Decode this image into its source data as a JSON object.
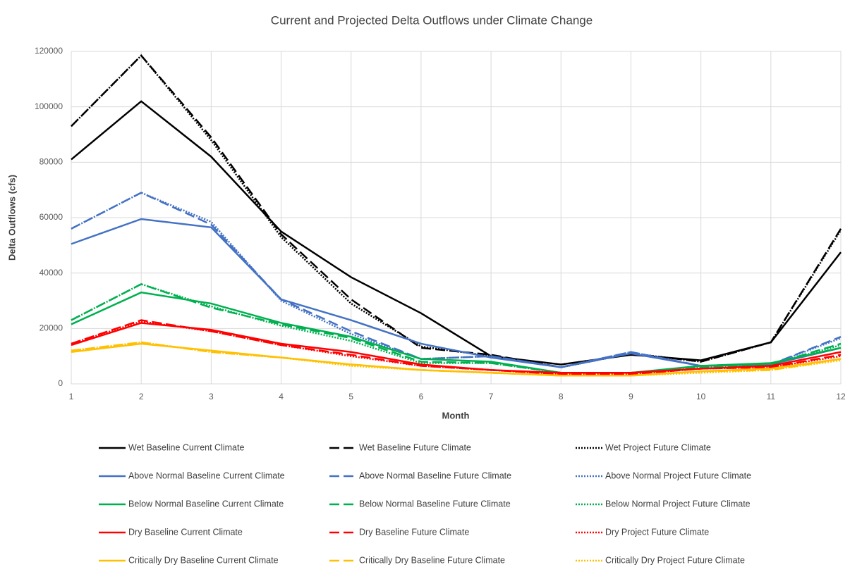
{
  "chart_data": {
    "type": "line",
    "title": "Current and Projected Delta Outflows under Climate Change",
    "x_label": "Month",
    "y_label": "Delta Outflows (cfs)",
    "x": [
      1,
      2,
      3,
      4,
      5,
      6,
      7,
      8,
      9,
      10,
      11,
      12
    ],
    "xlim": [
      1,
      12
    ],
    "xticks": [
      1,
      2,
      3,
      4,
      5,
      6,
      7,
      8,
      9,
      10,
      11,
      12
    ],
    "ylim": [
      0,
      120000
    ],
    "yticks": [
      0,
      20000,
      40000,
      60000,
      80000,
      100000,
      120000
    ],
    "grid": true,
    "legend": "bottom",
    "series": [
      {
        "name": "Wet Baseline Current Climate",
        "color": "#000000",
        "dash": "solid",
        "values": [
          81000,
          102000,
          82000,
          55000,
          38500,
          25500,
          10000,
          7000,
          10500,
          8500,
          15000,
          47500
        ]
      },
      {
        "name": "Wet Baseline Future Climate",
        "color": "#000000",
        "dash": "dash",
        "values": [
          93000,
          118500,
          89000,
          54000,
          30500,
          13000,
          10500,
          6000,
          11000,
          8000,
          15000,
          56000
        ]
      },
      {
        "name": "Wet Project Future Climate",
        "color": "#000000",
        "dash": "dot",
        "values": [
          93000,
          118500,
          88000,
          53000,
          29000,
          13500,
          10000,
          6000,
          11000,
          8000,
          15000,
          55500
        ]
      },
      {
        "name": "Above Normal Baseline Current Climate",
        "color": "#4472c4",
        "dash": "solid",
        "values": [
          50500,
          59500,
          56500,
          30500,
          23000,
          14500,
          9500,
          6000,
          11000,
          6500,
          7000,
          13000
        ]
      },
      {
        "name": "Above Normal Baseline Future Climate",
        "color": "#4472c4",
        "dash": "dash",
        "values": [
          56000,
          69000,
          57500,
          30500,
          19000,
          9000,
          10000,
          6000,
          11500,
          6500,
          7000,
          17000
        ]
      },
      {
        "name": "Above Normal Project Future Climate",
        "color": "#4472c4",
        "dash": "dot",
        "values": [
          56000,
          69000,
          58500,
          30000,
          18000,
          9000,
          10000,
          6000,
          11500,
          6500,
          7000,
          16500
        ]
      },
      {
        "name": "Below Normal Baseline Current Climate",
        "color": "#00b050",
        "dash": "solid",
        "values": [
          21500,
          33000,
          29000,
          22000,
          17000,
          9000,
          8000,
          4000,
          4000,
          6500,
          7500,
          13000
        ]
      },
      {
        "name": "Below Normal Baseline Future Climate",
        "color": "#00b050",
        "dash": "dash",
        "values": [
          23000,
          36000,
          27500,
          21500,
          16500,
          8000,
          7500,
          4000,
          4000,
          6000,
          7000,
          14500
        ]
      },
      {
        "name": "Below Normal Project Future Climate",
        "color": "#00b050",
        "dash": "dot",
        "values": [
          23000,
          36000,
          28000,
          21000,
          15500,
          7500,
          7500,
          4000,
          4000,
          6000,
          7000,
          14000
        ]
      },
      {
        "name": "Dry Baseline Current Climate",
        "color": "#ff0000",
        "dash": "solid",
        "values": [
          14000,
          22000,
          19500,
          14500,
          11500,
          7000,
          5000,
          4000,
          4000,
          5500,
          6500,
          11500
        ]
      },
      {
        "name": "Dry Baseline Future Climate",
        "color": "#ff0000",
        "dash": "dash",
        "values": [
          14500,
          23000,
          19000,
          14000,
          10500,
          6500,
          5000,
          3500,
          3500,
          5500,
          6000,
          10500
        ]
      },
      {
        "name": "Dry Project Future Climate",
        "color": "#ff0000",
        "dash": "dot",
        "values": [
          14500,
          22500,
          19000,
          14000,
          10000,
          6500,
          5000,
          3500,
          3500,
          5500,
          6000,
          10000
        ]
      },
      {
        "name": "Critically Dry Baseline Current Climate",
        "color": "#ffc000",
        "dash": "solid",
        "values": [
          11500,
          14500,
          12000,
          9500,
          7000,
          5000,
          4000,
          3000,
          3000,
          4500,
          5500,
          9000
        ]
      },
      {
        "name": "Critically Dry Baseline Future Climate",
        "color": "#ffc000",
        "dash": "dash",
        "values": [
          12000,
          15000,
          11500,
          9500,
          7000,
          5000,
          4000,
          3000,
          3000,
          4500,
          5000,
          9000
        ]
      },
      {
        "name": "Critically Dry Project Future Climate",
        "color": "#ffc000",
        "dash": "dot",
        "values": [
          12000,
          15000,
          11500,
          9500,
          6500,
          5000,
          4000,
          3000,
          3000,
          4000,
          5000,
          8500
        ]
      }
    ]
  }
}
